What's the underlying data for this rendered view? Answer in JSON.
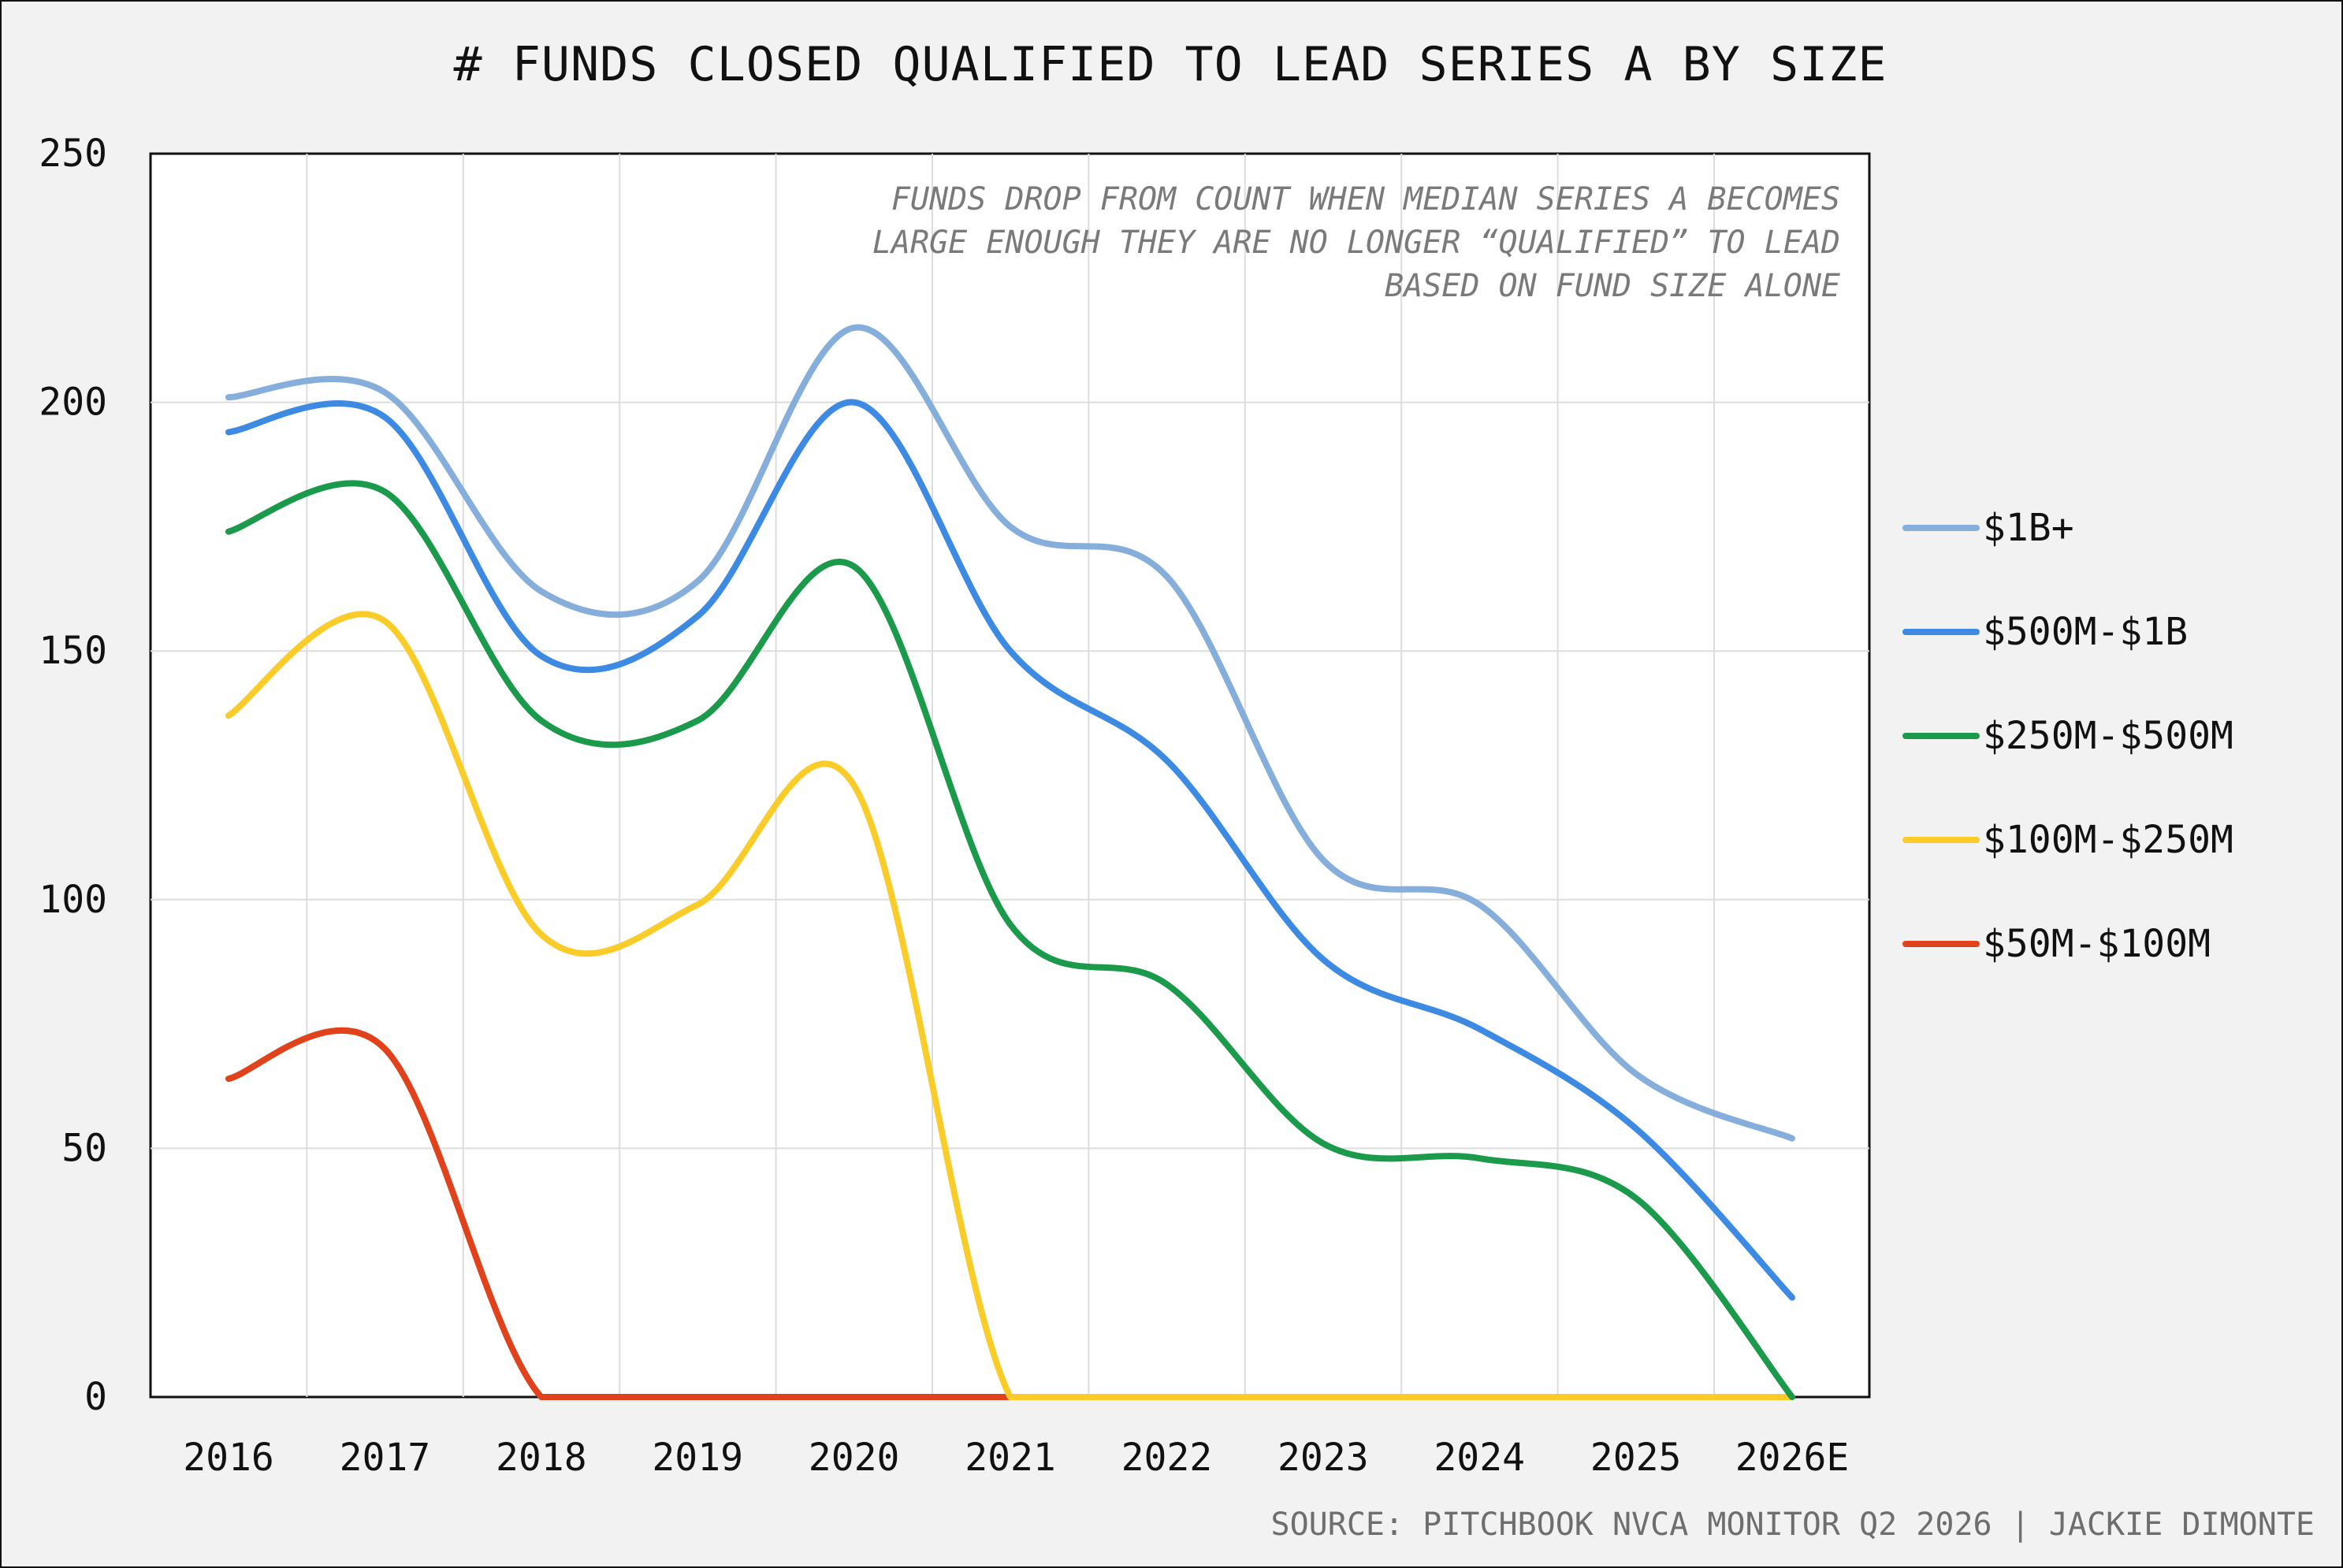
{
  "chart_data": {
    "type": "line",
    "title": "# FUNDS CLOSED QUALIFIED TO LEAD SERIES A BY SIZE",
    "categories": [
      "2016",
      "2017",
      "2018",
      "2019",
      "2020",
      "2021",
      "2022",
      "2023",
      "2024",
      "2025",
      "2026E"
    ],
    "ylim": [
      0,
      250
    ],
    "yticks": [
      0,
      50,
      100,
      150,
      200,
      250
    ],
    "grid": true,
    "legend_position": "right",
    "annotation": [
      "FUNDS DROP FROM COUNT WHEN MEDIAN SERIES A BECOMES",
      "LARGE ENOUGH THEY ARE NO LONGER “QUALIFIED” TO LEAD",
      "BASED ON FUND SIZE ALONE"
    ],
    "source": "SOURCE: PITCHBOOK NVCA MONITOR Q2 2026 | JACKIE DIMONTE",
    "series": [
      {
        "name": "$1B+",
        "color": "#86aedb",
        "values": [
          201,
          202,
          162,
          164,
          215,
          175,
          165,
          108,
          99,
          65,
          52
        ]
      },
      {
        "name": "$500M-$1B",
        "color": "#3d8ae2",
        "values": [
          194,
          197,
          149,
          157,
          200,
          150,
          128,
          88,
          74,
          54,
          20
        ]
      },
      {
        "name": "$250M-$500M",
        "color": "#1a9a4a",
        "values": [
          174,
          182,
          136,
          136,
          167,
          95,
          83,
          51,
          48,
          40,
          0
        ]
      },
      {
        "name": "$100M-$250M",
        "color": "#f9cc29",
        "values": [
          137,
          156,
          93,
          99,
          123,
          0,
          0,
          0,
          0,
          0,
          0
        ]
      },
      {
        "name": "$50M-$100M",
        "color": "#e0421b",
        "values": [
          64,
          70,
          0,
          0,
          0,
          0,
          0,
          null,
          null,
          null,
          null
        ]
      }
    ]
  }
}
